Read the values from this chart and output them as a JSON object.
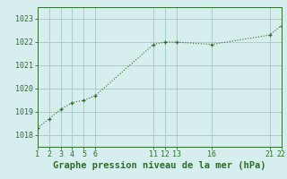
{
  "x": [
    1,
    2,
    3,
    4,
    5,
    6,
    11,
    12,
    13,
    16,
    21,
    22
  ],
  "y": [
    1018.3,
    1018.7,
    1019.1,
    1019.4,
    1019.5,
    1019.7,
    1021.9,
    1022.0,
    1022.0,
    1021.9,
    1022.3,
    1022.7
  ],
  "xlim": [
    1,
    22
  ],
  "ylim": [
    1017.5,
    1023.5
  ],
  "xticks": [
    1,
    2,
    3,
    4,
    5,
    6,
    11,
    12,
    13,
    16,
    21,
    22
  ],
  "yticks": [
    1018,
    1019,
    1020,
    1021,
    1022,
    1023
  ],
  "xlabel": "Graphe pression niveau de la mer (hPa)",
  "line_color": "#2d6e2d",
  "marker_color": "#2d6e2d",
  "bg_color": "#d6eeee",
  "grid_color": "#a0c8c8",
  "xlabel_fontsize": 7.5,
  "tick_fontsize": 6.0
}
